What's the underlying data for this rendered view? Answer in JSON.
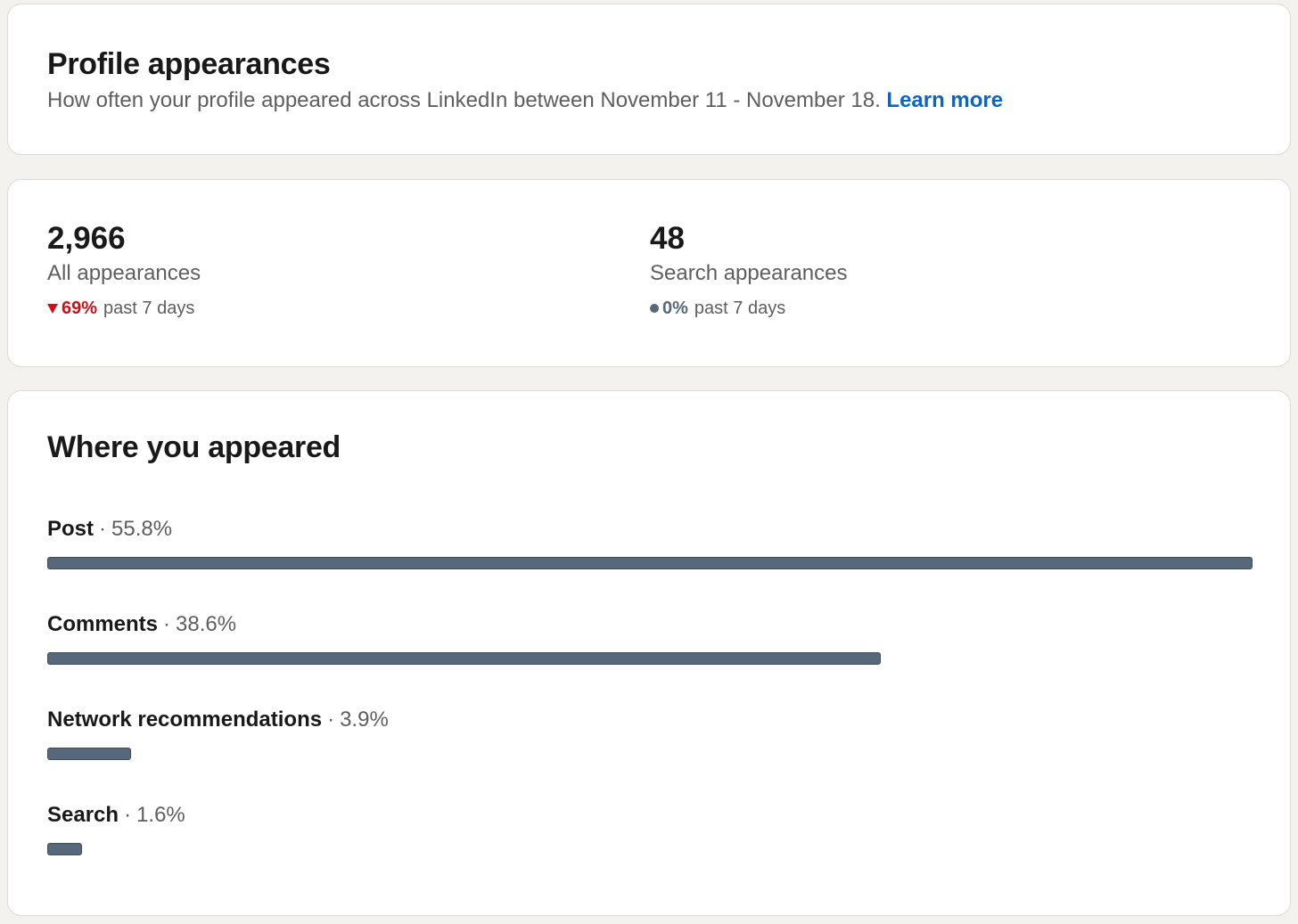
{
  "header": {
    "title": "Profile appearances",
    "subtitle": "How often your profile appeared across LinkedIn between November 11 - November 18.",
    "learn_more": "Learn more"
  },
  "stats": [
    {
      "value": "2,966",
      "label": "All appearances",
      "change": "69%",
      "change_direction": "down",
      "period": "past 7 days"
    },
    {
      "value": "48",
      "label": "Search appearances",
      "change": "0%",
      "change_direction": "neutral",
      "period": "past 7 days"
    }
  ],
  "where": {
    "title": "Where you appeared",
    "items": [
      {
        "name": "Post",
        "percent_label": "55.8%",
        "percent": 55.8
      },
      {
        "name": "Comments",
        "percent_label": "38.6%",
        "percent": 38.6
      },
      {
        "name": "Network recommendations",
        "percent_label": "3.9%",
        "percent": 3.9
      },
      {
        "name": "Search",
        "percent_label": "1.6%",
        "percent": 1.6
      }
    ]
  },
  "colors": {
    "accent_link": "#0a66c2",
    "negative": "#cc1016",
    "bar": "#56687a"
  }
}
